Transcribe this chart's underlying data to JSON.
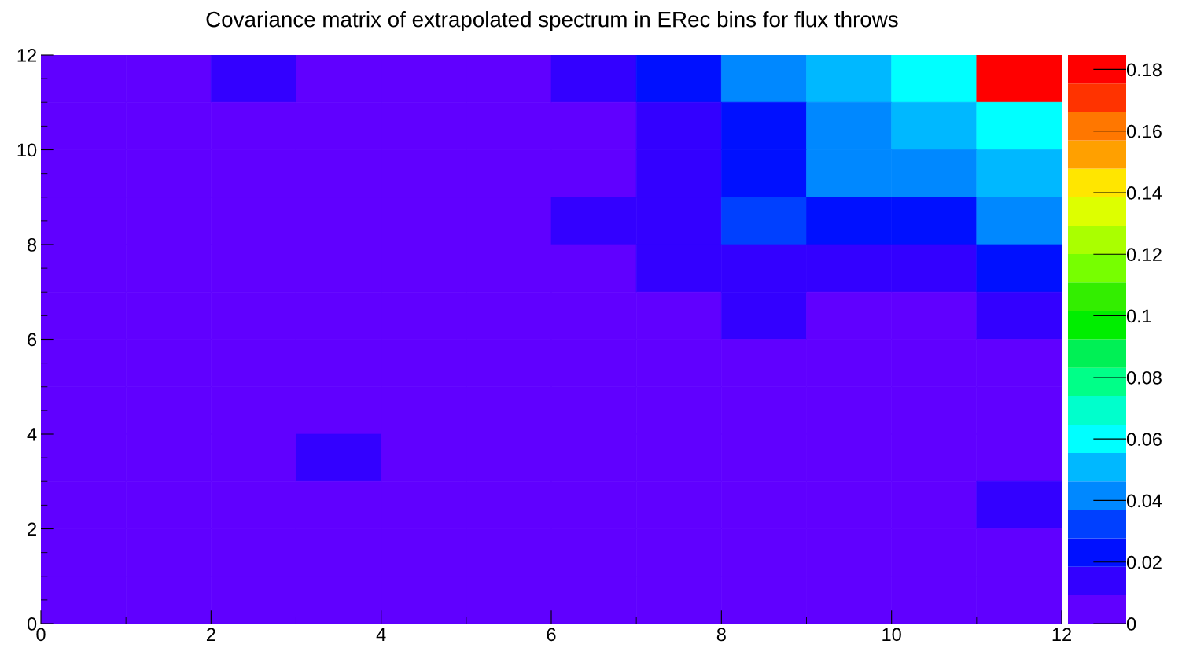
{
  "chart_data": {
    "type": "heatmap",
    "title": "Covariance matrix of extrapolated spectrum in ERec bins for flux throws",
    "x": [
      0.5,
      1.5,
      2.5,
      3.5,
      4.5,
      5.5,
      6.5,
      7.5,
      8.5,
      9.5,
      10.5,
      11.5
    ],
    "y": [
      11.5,
      10.5,
      9.5,
      8.5,
      7.5,
      6.5,
      5.5,
      4.5,
      3.5,
      2.5,
      1.5,
      0.5
    ],
    "xlim": [
      0,
      12
    ],
    "xticks": [
      0,
      2,
      4,
      6,
      8,
      10,
      12
    ],
    "ylim": [
      0,
      12
    ],
    "yticks": [
      0,
      2,
      4,
      6,
      8,
      10,
      12
    ],
    "clim": [
      0,
      0.1847
    ],
    "cticks": [
      0,
      0.02,
      0.04,
      0.06,
      0.08,
      0.1,
      0.12,
      0.14,
      0.16,
      0.18
    ],
    "colors": [
      "#6000ff",
      "#3300ff",
      "#0010ff",
      "#0040ff",
      "#0088ff",
      "#00b8ff",
      "#00ffff",
      "#00ffcc",
      "#00ff88",
      "#00f055",
      "#00ee00",
      "#33ee00",
      "#77ff00",
      "#aaff00",
      "#ddff00",
      "#ffe600",
      "#ffa000",
      "#ff7700",
      "#ff3300",
      "#ff0000"
    ],
    "cells": [
      [
        0.005,
        0.005,
        0.014,
        0.005,
        0.005,
        0.005,
        0.014,
        0.023,
        0.042,
        0.051,
        0.06,
        0.18
      ],
      [
        0.005,
        0.005,
        0.005,
        0.005,
        0.005,
        0.005,
        0.005,
        0.014,
        0.023,
        0.042,
        0.051,
        0.06
      ],
      [
        0.005,
        0.005,
        0.005,
        0.005,
        0.005,
        0.005,
        0.005,
        0.014,
        0.023,
        0.042,
        0.042,
        0.051
      ],
      [
        0.005,
        0.005,
        0.005,
        0.005,
        0.005,
        0.005,
        0.014,
        0.014,
        0.032,
        0.023,
        0.023,
        0.042
      ],
      [
        0.005,
        0.005,
        0.005,
        0.005,
        0.005,
        0.005,
        0.005,
        0.014,
        0.014,
        0.014,
        0.014,
        0.023
      ],
      [
        0.005,
        0.005,
        0.005,
        0.005,
        0.005,
        0.005,
        0.005,
        0.005,
        0.014,
        0.005,
        0.005,
        0.014
      ],
      [
        0.005,
        0.005,
        0.005,
        0.005,
        0.005,
        0.005,
        0.005,
        0.005,
        0.005,
        0.005,
        0.005,
        0.005
      ],
      [
        0.005,
        0.005,
        0.005,
        0.005,
        0.005,
        0.005,
        0.005,
        0.005,
        0.005,
        0.005,
        0.005,
        0.005
      ],
      [
        0.005,
        0.005,
        0.005,
        0.014,
        0.005,
        0.005,
        0.005,
        0.005,
        0.005,
        0.005,
        0.005,
        0.005
      ],
      [
        0.005,
        0.005,
        0.005,
        0.005,
        0.005,
        0.005,
        0.005,
        0.005,
        0.005,
        0.005,
        0.005,
        0.014
      ],
      [
        0.005,
        0.005,
        0.005,
        0.005,
        0.005,
        0.005,
        0.005,
        0.005,
        0.005,
        0.005,
        0.005,
        0.005
      ],
      [
        0.005,
        0.005,
        0.005,
        0.005,
        0.005,
        0.005,
        0.005,
        0.005,
        0.005,
        0.005,
        0.005,
        0.005
      ]
    ]
  }
}
